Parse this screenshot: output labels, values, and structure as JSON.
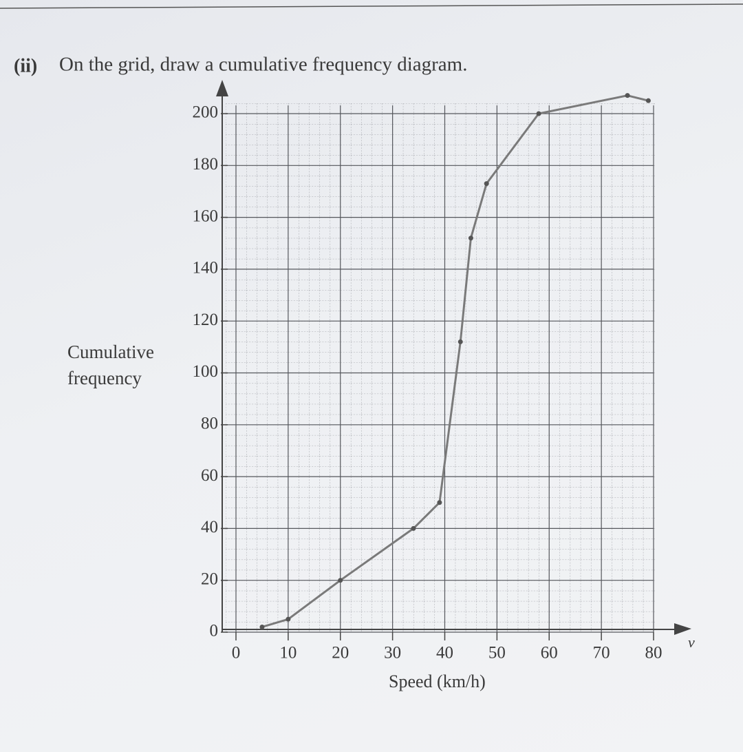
{
  "chart_data": {
    "type": "line",
    "label": "(ii)",
    "title": "On the grid, draw a cumulative frequency diagram.",
    "x_label": "Speed (km/h)",
    "x_variable": "v",
    "y_label": "Cumulative frequency",
    "x": [
      5,
      10,
      20,
      34,
      39,
      43,
      45,
      48,
      58,
      75,
      79
    ],
    "values": [
      2,
      5,
      20,
      40,
      50,
      112,
      152,
      173,
      200,
      207,
      205
    ],
    "color": "#7a7a7a",
    "xlim": [
      0,
      80
    ],
    "xticks": [
      0,
      10,
      20,
      30,
      40,
      50,
      60,
      70,
      80
    ],
    "ylim": [
      0,
      200
    ],
    "yticks": [
      0,
      20,
      40,
      60,
      80,
      100,
      120,
      140,
      160,
      180,
      200
    ],
    "grid": true
  }
}
